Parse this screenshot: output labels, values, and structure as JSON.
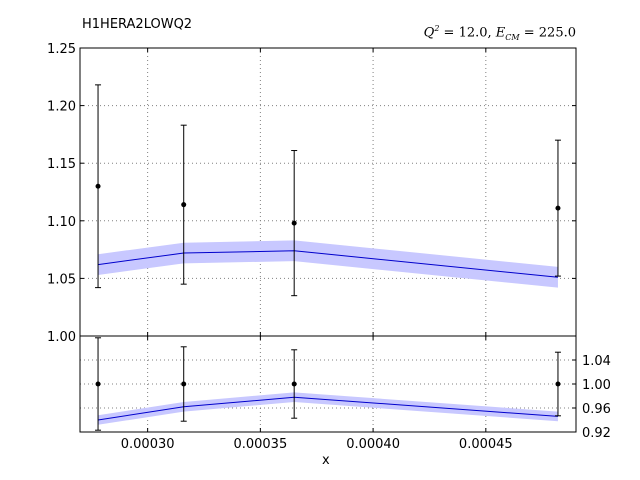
{
  "header": {
    "title_left": "H1HERA2LOWQ2",
    "q2_label": "Q",
    "q2_value": "= 12.0,",
    "ecm_label": "E",
    "ecm_sub": "CM",
    "ecm_value": "= 225.0"
  },
  "chart_data": [
    {
      "type": "line",
      "panel": "main",
      "title": "H1HERA2LOWQ2",
      "xlabel": "",
      "ylabel": "",
      "xlim": [
        0.00027,
        0.00049
      ],
      "ylim": [
        1.0,
        1.25
      ],
      "yticks": [
        1.0,
        1.05,
        1.1,
        1.15,
        1.2,
        1.25
      ],
      "ytick_labels": [
        "1.00",
        "1.05",
        "1.10",
        "1.15",
        "1.20",
        "1.25"
      ],
      "grid": true,
      "points": {
        "x": [
          0.000278,
          0.000316,
          0.000365,
          0.000482
        ],
        "y": [
          1.13,
          1.114,
          1.098,
          1.111
        ],
        "yerr": [
          0.088,
          0.069,
          0.063,
          0.059
        ]
      },
      "band": {
        "x": [
          0.000278,
          0.000316,
          0.000365,
          0.000482
        ],
        "center": [
          1.062,
          1.072,
          1.074,
          1.051
        ],
        "lower": [
          1.053,
          1.063,
          1.065,
          1.042
        ],
        "upper": [
          1.071,
          1.081,
          1.083,
          1.06
        ]
      },
      "colors": {
        "points": "#000000",
        "line": "#0000cc",
        "band": "#c8c8ff",
        "grid": "#808080"
      }
    },
    {
      "type": "line",
      "panel": "ratio",
      "xlabel": "x",
      "xlim": [
        0.00027,
        0.00049
      ],
      "xticks": [
        0.0003,
        0.00035,
        0.0004,
        0.00045
      ],
      "xtick_labels": [
        "0.00030",
        "0.00035",
        "0.00040",
        "0.00045"
      ],
      "ylim": [
        0.92,
        1.08
      ],
      "yticks": [
        0.92,
        0.96,
        1.0,
        1.04
      ],
      "ytick_labels": [
        "0.92",
        "0.96",
        "1.00",
        "1.04"
      ],
      "yaxis_side": "right",
      "grid": true,
      "points": {
        "x": [
          0.000278,
          0.000316,
          0.000365,
          0.000482
        ],
        "y": [
          1.0,
          1.0,
          1.0,
          1.0
        ],
        "yerr": [
          0.077,
          0.062,
          0.057,
          0.053
        ]
      },
      "band": {
        "x": [
          0.000278,
          0.000316,
          0.000365,
          0.000482
        ],
        "center": [
          0.94,
          0.962,
          0.978,
          0.946
        ],
        "lower": [
          0.932,
          0.954,
          0.97,
          0.938
        ],
        "upper": [
          0.948,
          0.97,
          0.986,
          0.954
        ]
      }
    }
  ]
}
